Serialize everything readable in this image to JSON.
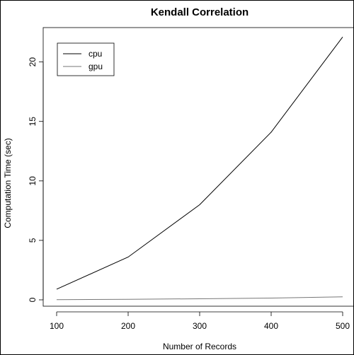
{
  "chart_data": {
    "type": "line",
    "title": "Kendall Correlation",
    "xlabel": "Number of Records",
    "ylabel": "Computation Time (sec)",
    "x": [
      100,
      200,
      300,
      400,
      500
    ],
    "xlim": [
      100,
      500
    ],
    "ylim": [
      0,
      22
    ],
    "xticks": [
      "100",
      "200",
      "300",
      "400",
      "500"
    ],
    "yticks": [
      "0",
      "5",
      "10",
      "15",
      "20"
    ],
    "grid": false,
    "legend_position": "top-left",
    "series": [
      {
        "name": "cpu",
        "values": [
          0.9,
          3.6,
          8.0,
          14.1,
          22.1
        ],
        "color": "#000000"
      },
      {
        "name": "gpu",
        "values": [
          0.02,
          0.05,
          0.09,
          0.15,
          0.25
        ],
        "color": "#777777"
      }
    ]
  }
}
